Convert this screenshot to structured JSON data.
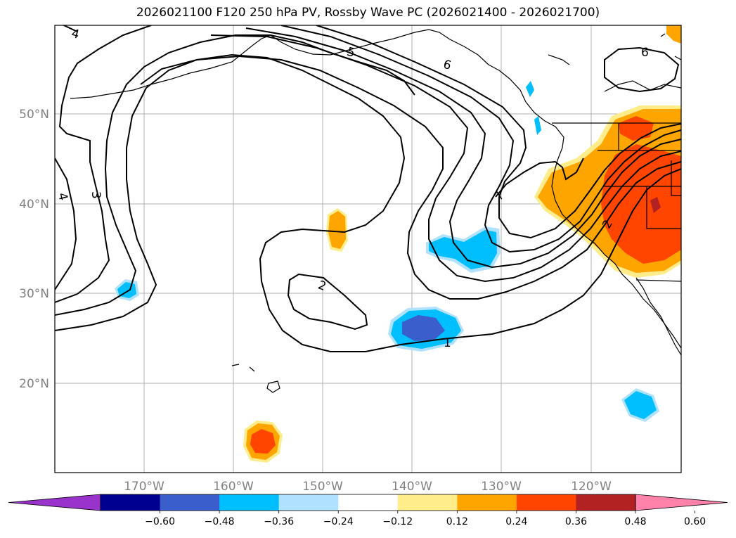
{
  "title": "2026021100 F120 250 hPa PV, Rossby Wave PC (2026021400 - 2026021700)",
  "map": {
    "lat_labels": [
      "50°N",
      "40°N",
      "30°N",
      "20°N"
    ],
    "lon_labels": [
      "170°W",
      "160°W",
      "150°W",
      "140°W",
      "130°W",
      "120°W"
    ],
    "contour_labels": [
      "4",
      "3",
      "4",
      "5",
      "6",
      "7",
      "2",
      "1",
      "2",
      "6"
    ]
  },
  "colorbar": {
    "colors": [
      "#9933cc",
      "#000090",
      "#3a5fcd",
      "#00bfff",
      "#b0e2ff",
      "#ffffff",
      "#ffec8b",
      "#ffa500",
      "#ff4500",
      "#b22222",
      "#ff82ab"
    ],
    "tick_labels": [
      "−0.60",
      "−0.48",
      "−0.36",
      "−0.24",
      "−0.12",
      "0.12",
      "0.24",
      "0.36",
      "0.48",
      "0.60"
    ]
  }
}
